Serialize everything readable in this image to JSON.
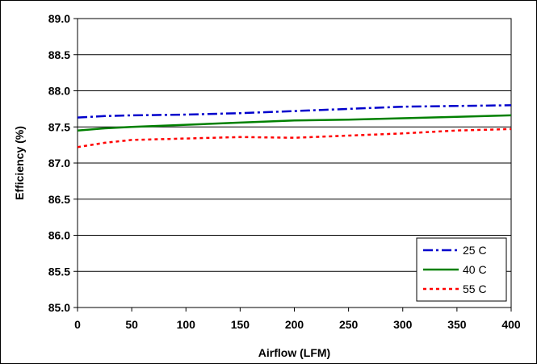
{
  "chart_data": {
    "type": "line",
    "title": "",
    "xlabel": "Airflow (LFM)",
    "ylabel": "Efficiency (%)",
    "xlim": [
      0,
      400
    ],
    "ylim": [
      85.0,
      89.0
    ],
    "x_ticks": [
      0,
      50,
      100,
      150,
      200,
      250,
      300,
      350,
      400
    ],
    "y_ticks": [
      85.0,
      85.5,
      86.0,
      86.5,
      87.0,
      87.5,
      88.0,
      88.5,
      89.0
    ],
    "x_tick_labels": [
      "0",
      "50",
      "100",
      "150",
      "200",
      "250",
      "300",
      "350",
      "400"
    ],
    "y_tick_labels": [
      "85.0",
      "85.5",
      "86.0",
      "86.5",
      "87.0",
      "87.5",
      "88.0",
      "88.5",
      "89.0"
    ],
    "grid": "horizontal",
    "legend_position": "bottom-right",
    "series": [
      {
        "name": "25 C",
        "color": "#0000cc",
        "dash": "dash-dot",
        "x": [
          0,
          25,
          50,
          100,
          150,
          200,
          250,
          300,
          350,
          400
        ],
        "values": [
          87.63,
          87.65,
          87.66,
          87.67,
          87.69,
          87.72,
          87.75,
          87.78,
          87.79,
          87.8
        ]
      },
      {
        "name": "40 C",
        "color": "#008000",
        "dash": "solid",
        "x": [
          0,
          25,
          50,
          100,
          150,
          200,
          250,
          300,
          350,
          400
        ],
        "values": [
          87.45,
          87.48,
          87.5,
          87.53,
          87.56,
          87.59,
          87.6,
          87.62,
          87.64,
          87.66
        ]
      },
      {
        "name": "55 C",
        "color": "#ff0000",
        "dash": "dotted",
        "x": [
          0,
          25,
          50,
          100,
          150,
          200,
          250,
          300,
          350,
          400
        ],
        "values": [
          87.22,
          87.28,
          87.32,
          87.34,
          87.36,
          87.35,
          87.38,
          87.41,
          87.45,
          87.47
        ]
      }
    ]
  }
}
